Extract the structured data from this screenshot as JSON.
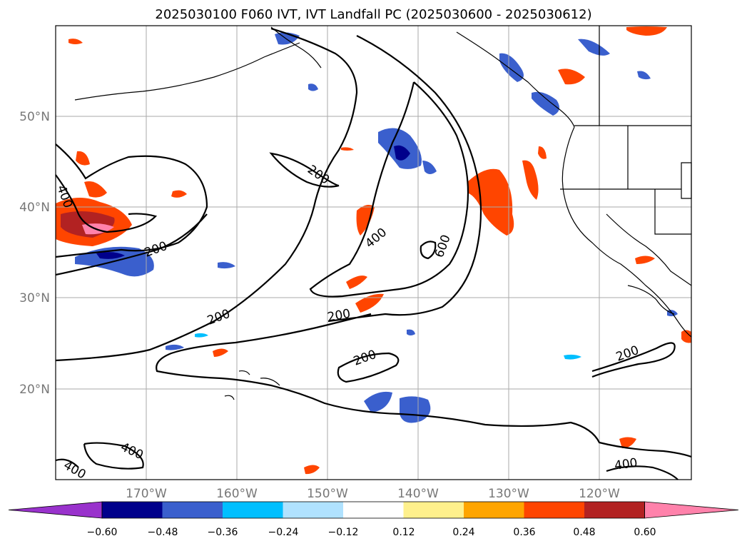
{
  "title": "2025030100 F060 IVT, IVT Landfall PC (2025030600 - 2025030612)",
  "map": {
    "lat_labels": [
      "50°N",
      "40°N",
      "30°N",
      "20°N"
    ],
    "lon_labels": [
      "170°W",
      "160°W",
      "150°W",
      "140°W",
      "130°W",
      "120°W"
    ],
    "contour_labels": [
      "400",
      "200",
      "200",
      "400",
      "600",
      "200",
      "200",
      "200",
      "200",
      "400",
      "400",
      "400"
    ]
  },
  "colorbar": {
    "ticks": [
      "−0.60",
      "−0.48",
      "−0.36",
      "−0.24",
      "−0.12",
      "0.12",
      "0.24",
      "0.36",
      "0.48",
      "0.60"
    ],
    "colors": [
      "#9932cc",
      "#00008b",
      "#3a5fcd",
      "#00bfff",
      "#b0e2ff",
      "#ffffff",
      "#fff08c",
      "#ffa500",
      "#ff4500",
      "#b22222",
      "#ff82ab"
    ]
  }
}
